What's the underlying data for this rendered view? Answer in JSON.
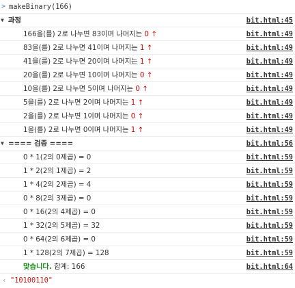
{
  "console": {
    "command": "makeBinary(166)",
    "process_group": {
      "label": "과정",
      "source": "bit.html:45",
      "lines": [
        {
          "dividend": "166",
          "text1": "을(를) 2로 나누면 ",
          "quotient": "83",
          "text2": "이며 나머지는 ",
          "remainder": "0",
          "source": "bit.html:49"
        },
        {
          "dividend": "83",
          "text1": "을(를) 2로 나누면 ",
          "quotient": "41",
          "text2": "이며 나머지는 ",
          "remainder": "1",
          "source": "bit.html:49"
        },
        {
          "dividend": "41",
          "text1": "을(를) 2로 나누면 ",
          "quotient": "20",
          "text2": "이며 나머지는 ",
          "remainder": "1",
          "source": "bit.html:49"
        },
        {
          "dividend": "20",
          "text1": "을(를) 2로 나누면 ",
          "quotient": "10",
          "text2": "이며 나머지는 ",
          "remainder": "0",
          "source": "bit.html:49"
        },
        {
          "dividend": "10",
          "text1": "을(를) 2로 나누면 ",
          "quotient": "5",
          "text2": "이며 나머지는 ",
          "remainder": "0",
          "source": "bit.html:49"
        },
        {
          "dividend": "5",
          "text1": "을(를) 2로 나누면 ",
          "quotient": "2",
          "text2": "이며 나머지는 ",
          "remainder": "1",
          "source": "bit.html:49"
        },
        {
          "dividend": "2",
          "text1": "을(를) 2로 나누면 ",
          "quotient": "1",
          "text2": "이며 나머지는 ",
          "remainder": "0",
          "source": "bit.html:49"
        },
        {
          "dividend": "1",
          "text1": "을(를) 2로 나누면 ",
          "quotient": "0",
          "text2": "이며 나머지는 ",
          "remainder": "1",
          "source": "bit.html:49"
        }
      ]
    },
    "verify_group": {
      "label": "==== 검증 ====",
      "source": "bit.html:56",
      "lines": [
        {
          "text": "0 * 1(2의 0제곱) = 0",
          "source": "bit.html:59"
        },
        {
          "text": "1 * 2(2의 1제곱) = 2",
          "source": "bit.html:59"
        },
        {
          "text": "1 * 4(2의 2제곱) = 4",
          "source": "bit.html:59"
        },
        {
          "text": "0 * 8(2의 3제곱) = 0",
          "source": "bit.html:59"
        },
        {
          "text": "0 * 16(2의 4제곱) = 0",
          "source": "bit.html:59"
        },
        {
          "text": "1 * 32(2의 5제곱) = 32",
          "source": "bit.html:59"
        },
        {
          "text": "0 * 64(2의 6제곱) = 0",
          "source": "bit.html:59"
        },
        {
          "text": "1 * 128(2의 7제곱) = 128",
          "source": "bit.html:59"
        }
      ],
      "summary": {
        "correct": "맞습니다.",
        "sum_label": " 합계: 166",
        "source": "bit.html:64"
      }
    },
    "result": "\"10100110\"",
    "colors": {
      "remainder": "#c80000",
      "correct": "#1a8a1a",
      "result_string": "#c41a16",
      "prompt": "#367cf1"
    },
    "icons": {
      "prompt": "chevron-right-icon",
      "expanded": "triangle-down-icon",
      "arrow": "arrow-up-icon",
      "result": "return-arrow-icon"
    }
  }
}
